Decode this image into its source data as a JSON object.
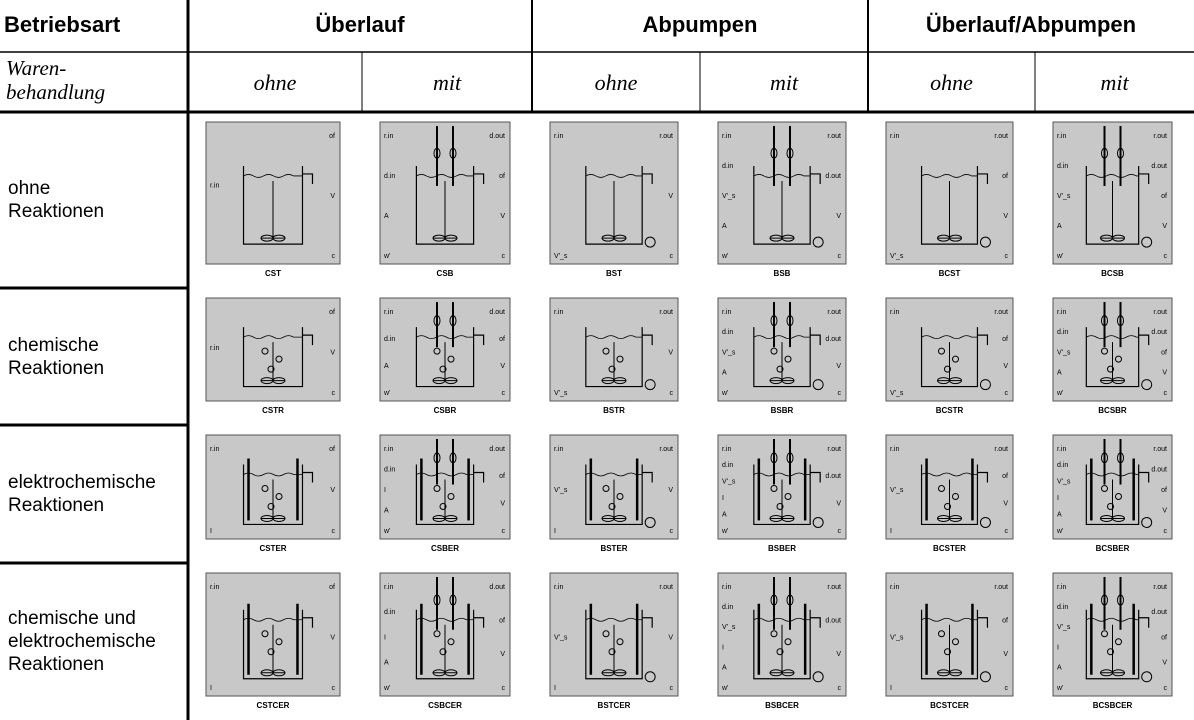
{
  "header": {
    "title": "Betriebsart",
    "groups": [
      "Überlauf",
      "Abpumpen",
      "Überlauf/Abpumpen"
    ],
    "subtitle": "Waren-\nbehandlung",
    "options": [
      "ohne",
      "mit",
      "ohne",
      "mit",
      "ohne",
      "mit"
    ]
  },
  "rows": [
    {
      "label": "ohne\nReaktionen",
      "blocks": [
        {
          "name": "CST",
          "inputs": [
            "r.in"
          ],
          "outputs": [
            "of",
            "V",
            "c"
          ]
        },
        {
          "name": "CSB",
          "inputs": [
            "r.in",
            "d.in",
            "A",
            "w'"
          ],
          "outputs": [
            "d.out",
            "of",
            "V",
            "c"
          ]
        },
        {
          "name": "BST",
          "inputs": [
            "r.in",
            "V'_s"
          ],
          "outputs": [
            "r.out",
            "V",
            "c"
          ]
        },
        {
          "name": "BSB",
          "inputs": [
            "r.in",
            "d.in",
            "V'_s",
            "A",
            "w'"
          ],
          "outputs": [
            "r.out",
            "d.out",
            "V",
            "c"
          ]
        },
        {
          "name": "BCST",
          "inputs": [
            "r.in",
            "V'_s"
          ],
          "outputs": [
            "r.out",
            "of",
            "V",
            "c"
          ]
        },
        {
          "name": "BCSB",
          "inputs": [
            "r.in",
            "d.in",
            "V'_s",
            "A",
            "w'"
          ],
          "outputs": [
            "r.out",
            "d.out",
            "of",
            "V",
            "c"
          ]
        }
      ]
    },
    {
      "label": "chemische\nReaktionen",
      "blocks": [
        {
          "name": "CSTR",
          "inputs": [
            "r.in"
          ],
          "outputs": [
            "of",
            "V",
            "c"
          ]
        },
        {
          "name": "CSBR",
          "inputs": [
            "r.in",
            "d.in",
            "A",
            "w'"
          ],
          "outputs": [
            "d.out",
            "of",
            "V",
            "c"
          ]
        },
        {
          "name": "BSTR",
          "inputs": [
            "r.in",
            "V'_s"
          ],
          "outputs": [
            "r.out",
            "V",
            "c"
          ]
        },
        {
          "name": "BSBR",
          "inputs": [
            "r.in",
            "d.in",
            "V'_s",
            "A",
            "w'"
          ],
          "outputs": [
            "r.out",
            "d.out",
            "V",
            "c"
          ]
        },
        {
          "name": "BCSTR",
          "inputs": [
            "r.in",
            "V'_s"
          ],
          "outputs": [
            "r.out",
            "of",
            "V",
            "c"
          ]
        },
        {
          "name": "BCSBR",
          "inputs": [
            "r.in",
            "d.in",
            "V'_s",
            "A",
            "w'"
          ],
          "outputs": [
            "r.out",
            "d.out",
            "of",
            "V",
            "c"
          ]
        }
      ]
    },
    {
      "label": "elektrochemische\nReaktionen",
      "blocks": [
        {
          "name": "CSTER",
          "inputs": [
            "r.in",
            "I"
          ],
          "outputs": [
            "of",
            "V",
            "c"
          ]
        },
        {
          "name": "CSBER",
          "inputs": [
            "r.in",
            "d.in",
            "I",
            "A",
            "w'"
          ],
          "outputs": [
            "d.out",
            "of",
            "V",
            "c"
          ]
        },
        {
          "name": "BSTER",
          "inputs": [
            "r.in",
            "V'_s",
            "I"
          ],
          "outputs": [
            "r.out",
            "V",
            "c"
          ]
        },
        {
          "name": "BSBER",
          "inputs": [
            "r.in",
            "d.in",
            "V'_s",
            "I",
            "A",
            "w'"
          ],
          "outputs": [
            "r.out",
            "d.out",
            "V",
            "c"
          ]
        },
        {
          "name": "BCSTER",
          "inputs": [
            "r.in",
            "V'_s",
            "I"
          ],
          "outputs": [
            "r.out",
            "of",
            "V",
            "c"
          ]
        },
        {
          "name": "BCSBER",
          "inputs": [
            "r.in",
            "d.in",
            "V'_s",
            "I",
            "A",
            "w'"
          ],
          "outputs": [
            "r.out",
            "d.out",
            "of",
            "V",
            "c"
          ]
        }
      ]
    },
    {
      "label": "chemische und\nelektrochemische\nReaktionen",
      "blocks": [
        {
          "name": "CSTCER",
          "inputs": [
            "r.in",
            "I"
          ],
          "outputs": [
            "of",
            "V",
            "c"
          ]
        },
        {
          "name": "CSBCER",
          "inputs": [
            "r.in",
            "d.in",
            "I",
            "A",
            "w'"
          ],
          "outputs": [
            "d.out",
            "of",
            "V",
            "c"
          ]
        },
        {
          "name": "BSTCER",
          "inputs": [
            "r.in",
            "V'_s",
            "I"
          ],
          "outputs": [
            "r.out",
            "V",
            "c"
          ]
        },
        {
          "name": "BSBCER",
          "inputs": [
            "r.in",
            "d.in",
            "V'_s",
            "I",
            "A",
            "w'"
          ],
          "outputs": [
            "r.out",
            "d.out",
            "V",
            "c"
          ]
        },
        {
          "name": "BCSTCER",
          "inputs": [
            "r.in",
            "V'_s",
            "I"
          ],
          "outputs": [
            "r.out",
            "of",
            "V",
            "c"
          ]
        },
        {
          "name": "BCSBCER",
          "inputs": [
            "r.in",
            "d.in",
            "V'_s",
            "I",
            "A",
            "w'"
          ],
          "outputs": [
            "r.out",
            "d.out",
            "of",
            "V",
            "c"
          ]
        }
      ]
    }
  ]
}
